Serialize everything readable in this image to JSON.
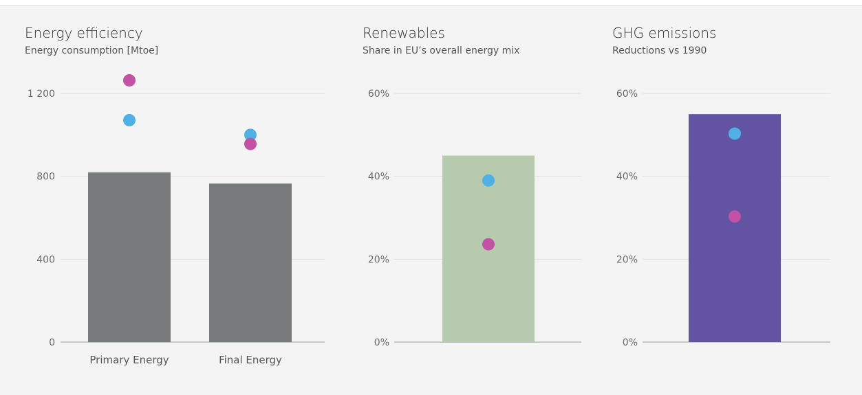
{
  "chart_data": [
    {
      "type": "bar",
      "title": "Energy efficiency",
      "subtitle": "Energy consumption [Mtoe]",
      "categories": [
        "Primary Energy",
        "Final Energy"
      ],
      "values": [
        819,
        765
      ],
      "ylim": [
        0,
        1200
      ],
      "yticks": [
        0,
        400,
        800,
        1200
      ],
      "ytick_labels": [
        "0",
        "400",
        "800",
        "1 200"
      ],
      "bar_color": "#787b7b",
      "markers": [
        {
          "color": "#50b0e6",
          "values": [
            1071,
            1000
          ]
        },
        {
          "color": "#c352a5",
          "values": [
            1263,
            956
          ]
        }
      ]
    },
    {
      "type": "bar",
      "title": "Renewables",
      "subtitle": "Share in EU’s overall energy mix",
      "categories": [
        ""
      ],
      "values": [
        45
      ],
      "ylim": [
        0,
        60
      ],
      "yticks": [
        0,
        20,
        40,
        60
      ],
      "ytick_labels": [
        "0%",
        "20%",
        "40%",
        "60%"
      ],
      "bar_color": "#b6cbae",
      "markers": [
        {
          "color": "#50b0e6",
          "values": [
            39
          ]
        },
        {
          "color": "#c352a5",
          "values": [
            23.6
          ]
        }
      ]
    },
    {
      "type": "bar",
      "title": "GHG emissions",
      "subtitle": "Reductions vs 1990",
      "categories": [
        ""
      ],
      "values": [
        55
      ],
      "ylim": [
        0,
        60
      ],
      "yticks": [
        0,
        20,
        40,
        60
      ],
      "ytick_labels": [
        "0%",
        "20%",
        "40%",
        "60%"
      ],
      "bar_color": "#6353a3",
      "markers": [
        {
          "color": "#50b0e6",
          "values": [
            50.3
          ]
        },
        {
          "color": "#c352a5",
          "values": [
            30.3
          ]
        }
      ]
    }
  ]
}
